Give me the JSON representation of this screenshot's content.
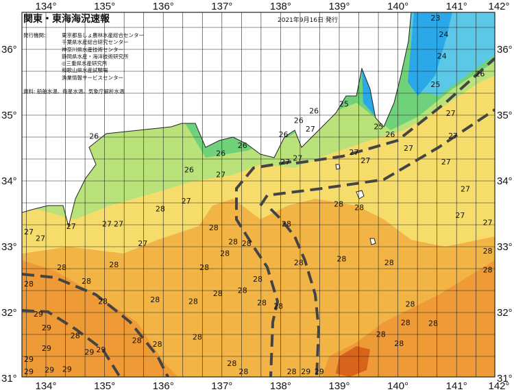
{
  "header": {
    "title": "関東・東海海況速報",
    "issue_date": "2021年9月16日 発行",
    "issuers_label": "発行機関:",
    "issuers": [
      "東京都島しょ農林水産総合センター",
      "千葉県水産総合研究センター",
      "神奈川県水産技術センター",
      "静岡県水産・海洋技術研究所",
      "◎三重県水産研究所",
      "和歌山県水産試験場",
      "漁業情報サービスセンター"
    ],
    "source": "資料: 船舶水温、衛星水温、気象庁解析水温"
  },
  "axes": {
    "longitude_labels": [
      "134°",
      "135°",
      "136°",
      "137°",
      "138°",
      "139°",
      "140°",
      "141°",
      "142°"
    ],
    "latitude_labels": [
      "36°",
      "35°",
      "34°",
      "33°",
      "32°",
      "31°"
    ],
    "lon_range": [
      133.6,
      141.65
    ],
    "lat_range": [
      30.95,
      36.55
    ]
  },
  "colors": {
    "land": "#ffffff",
    "temp_23": "#2aa8e8",
    "temp_24": "#5cc8e8",
    "temp_25": "#6fd27a",
    "temp_26": "#b9e27a",
    "temp_27": "#f6dc6a",
    "temp_28": "#f3b446",
    "temp_29": "#ee9a36",
    "temp_30": "#d8641c",
    "current": "#444444"
  },
  "temperature_labels": [
    {
      "t": "23",
      "lon": 140.64,
      "lat": 36.5
    },
    {
      "t": "24",
      "lon": 140.78,
      "lat": 36.23
    },
    {
      "t": "24",
      "lon": 140.75,
      "lat": 35.9
    },
    {
      "t": "26",
      "lon": 141.4,
      "lat": 35.63
    },
    {
      "t": "25",
      "lon": 140.64,
      "lat": 35.47
    },
    {
      "t": "25",
      "lon": 139.08,
      "lat": 35.17
    },
    {
      "t": "26",
      "lon": 138.57,
      "lat": 35.07
    },
    {
      "t": "26",
      "lon": 138.31,
      "lat": 34.92
    },
    {
      "t": "27",
      "lon": 138.22,
      "lat": 34.79
    },
    {
      "t": "26",
      "lon": 138.05,
      "lat": 34.71
    },
    {
      "t": "25",
      "lon": 139.67,
      "lat": 34.83
    },
    {
      "t": "26",
      "lon": 139.83,
      "lat": 34.71
    },
    {
      "t": "27",
      "lon": 140.9,
      "lat": 35.03
    },
    {
      "t": "27",
      "lon": 140.94,
      "lat": 34.69
    },
    {
      "t": "27",
      "lon": 140.18,
      "lat": 34.5
    },
    {
      "t": "26",
      "lon": 137.35,
      "lat": 34.54
    },
    {
      "t": "26",
      "lon": 136.98,
      "lat": 34.42
    },
    {
      "t": "27",
      "lon": 139.25,
      "lat": 34.44
    },
    {
      "t": "27",
      "lon": 138.29,
      "lat": 34.35
    },
    {
      "t": "27",
      "lon": 138.08,
      "lat": 34.29
    },
    {
      "t": "27",
      "lon": 139.15,
      "lat": 34.31
    },
    {
      "t": "27",
      "lon": 140.82,
      "lat": 34.29
    },
    {
      "t": "26",
      "lon": 136.44,
      "lat": 34.17
    },
    {
      "t": "27",
      "lon": 136.98,
      "lat": 34.1
    },
    {
      "t": "26",
      "lon": 134.82,
      "lat": 34.68
    },
    {
      "t": "27",
      "lon": 141.15,
      "lat": 33.88
    },
    {
      "t": "28",
      "lon": 138.99,
      "lat": 33.65
    },
    {
      "t": "28",
      "lon": 139.34,
      "lat": 33.6
    },
    {
      "t": "27",
      "lon": 136.39,
      "lat": 33.7
    },
    {
      "t": "28",
      "lon": 135.95,
      "lat": 33.58
    },
    {
      "t": "28",
      "lon": 138.1,
      "lat": 33.35
    },
    {
      "t": "27",
      "lon": 141.06,
      "lat": 33.48
    },
    {
      "t": "27",
      "lon": 141.53,
      "lat": 33.37
    },
    {
      "t": "27",
      "lon": 134.43,
      "lat": 33.31
    },
    {
      "t": "27",
      "lon": 135.04,
      "lat": 33.35
    },
    {
      "t": "27",
      "lon": 135.16,
      "lat": 33.35
    },
    {
      "t": "27",
      "lon": 133.64,
      "lat": 33.23
    },
    {
      "t": "27",
      "lon": 133.87,
      "lat": 33.13
    },
    {
      "t": "28",
      "lon": 136.86,
      "lat": 33.29
    },
    {
      "t": "28",
      "lon": 137.19,
      "lat": 33.08
    },
    {
      "t": "27",
      "lon": 135.65,
      "lat": 33.05
    },
    {
      "t": "28",
      "lon": 137.42,
      "lat": 33.05
    },
    {
      "t": "28",
      "lon": 137.05,
      "lat": 32.9
    },
    {
      "t": "28",
      "lon": 136.7,
      "lat": 32.69
    },
    {
      "t": "28",
      "lon": 138.31,
      "lat": 32.76
    },
    {
      "t": "28",
      "lon": 139.04,
      "lat": 32.82
    },
    {
      "t": "28",
      "lon": 139.85,
      "lat": 32.76
    },
    {
      "t": "28",
      "lon": 134.27,
      "lat": 32.69
    },
    {
      "t": "28",
      "lon": 135.16,
      "lat": 32.73
    },
    {
      "t": "28",
      "lon": 141.53,
      "lat": 32.94
    },
    {
      "t": "28",
      "lon": 141.53,
      "lat": 32.65
    },
    {
      "t": "28",
      "lon": 133.66,
      "lat": 32.44
    },
    {
      "t": "28",
      "lon": 134.69,
      "lat": 32.48
    },
    {
      "t": "28",
      "lon": 137.61,
      "lat": 32.51
    },
    {
      "t": "28",
      "lon": 137.35,
      "lat": 32.34
    },
    {
      "t": "28",
      "lon": 136.93,
      "lat": 32.29
    },
    {
      "t": "28",
      "lon": 137.68,
      "lat": 32.15
    },
    {
      "t": "28",
      "lon": 137.96,
      "lat": 32.1
    },
    {
      "t": "28",
      "lon": 136.51,
      "lat": 32.17
    },
    {
      "t": "28",
      "lon": 134.97,
      "lat": 32.17
    },
    {
      "t": "28",
      "lon": 135.86,
      "lat": 32.2
    },
    {
      "t": "28",
      "lon": 140.21,
      "lat": 32.13
    },
    {
      "t": "28",
      "lon": 140.13,
      "lat": 31.85
    },
    {
      "t": "28",
      "lon": 140.6,
      "lat": 31.84
    },
    {
      "t": "29",
      "lon": 133.87,
      "lat": 31.98
    },
    {
      "t": "29",
      "lon": 134.01,
      "lat": 31.77
    },
    {
      "t": "28",
      "lon": 134.5,
      "lat": 31.65
    },
    {
      "t": "28",
      "lon": 135.55,
      "lat": 31.58
    },
    {
      "t": "28",
      "lon": 136.58,
      "lat": 31.63
    },
    {
      "t": "29",
      "lon": 134.74,
      "lat": 31.4
    },
    {
      "t": "29",
      "lon": 134.85,
      "lat": 31.44
    },
    {
      "t": "28",
      "lon": 135.9,
      "lat": 31.52
    },
    {
      "t": "28",
      "lon": 139.71,
      "lat": 31.67
    },
    {
      "t": "28",
      "lon": 140.02,
      "lat": 31.53
    },
    {
      "t": "29",
      "lon": 133.66,
      "lat": 31.29
    },
    {
      "t": "29",
      "lon": 134.01,
      "lat": 31.46
    },
    {
      "t": "29",
      "lon": 134.06,
      "lat": 31.13
    },
    {
      "t": "29",
      "lon": 134.36,
      "lat": 31.14
    },
    {
      "t": "28",
      "lon": 137.17,
      "lat": 31.23
    },
    {
      "t": "28",
      "lon": 137.1,
      "lat": 30.93
    },
    {
      "t": "28",
      "lon": 138.19,
      "lat": 31.02
    },
    {
      "t": "29",
      "lon": 138.66,
      "lat": 31.07
    },
    {
      "t": "29",
      "lon": 138.43,
      "lat": 30.93
    },
    {
      "t": "29",
      "lon": 133.66,
      "lat": 30.93
    }
  ]
}
